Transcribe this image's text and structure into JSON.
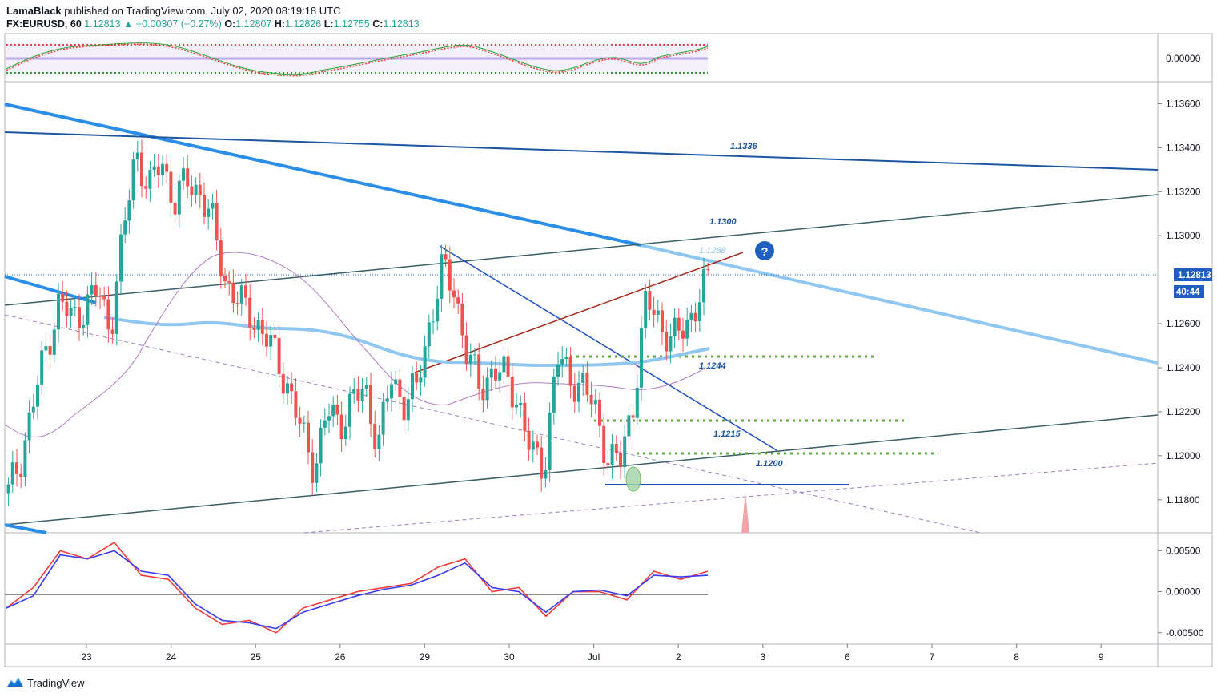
{
  "header": {
    "author": "LamaBlack",
    "published_text": "published on TradingView.com, July 02, 2020 08:19:18 UTC",
    "symbol": "FX:EURUSD, 60",
    "last": "1.12813",
    "change_arrow": "▲",
    "change": "+0.00307 (+0.27%)",
    "o_label": "O:",
    "o_value": "1.12807",
    "h_label": "H:",
    "h_value": "1.12826",
    "l_label": "L:",
    "l_value": "1.12755",
    "c_label": "C:",
    "c_value": "1.12813"
  },
  "branding": {
    "logo_icon": "tradingview-logo-icon",
    "name": "TradingView"
  },
  "chart_data": {
    "type": "candlestick",
    "title": "",
    "xlabel": "",
    "ylabel": "",
    "ylim": [
      1.1165,
      1.137
    ],
    "x_ticks": [
      "23",
      "24",
      "25",
      "26",
      "29",
      "30",
      "Jul",
      "2",
      "3",
      "6",
      "7",
      "8",
      "9"
    ],
    "y_ticks": [
      "1.13600",
      "1.13400",
      "1.13200",
      "1.13000",
      "1.12600",
      "1.12400",
      "1.12200",
      "1.12000",
      "1.11800"
    ],
    "last_price_label": "1.12813",
    "countdown_label": "40:44",
    "level_labels": [
      {
        "text": "1.1336",
        "value": 1.1336
      },
      {
        "text": "1.1300",
        "value": 1.13
      },
      {
        "text": "1.1288",
        "value": 1.1288
      },
      {
        "text": "1.1244",
        "value": 1.1244
      },
      {
        "text": "1.1215",
        "value": 1.1215
      },
      {
        "text": "1.1200",
        "value": 1.12
      }
    ],
    "question_marker": "?",
    "candles_close_path": [
      1.1183,
      1.12,
      1.1225,
      1.125,
      1.127,
      1.1262,
      1.1268,
      1.1275,
      1.1258,
      1.13,
      1.134,
      1.132,
      1.1335,
      1.1315,
      1.1325,
      1.132,
      1.1305,
      1.128,
      1.127,
      1.1265,
      1.1255,
      1.1245,
      1.123,
      1.121,
      1.1195,
      1.122,
      1.1215,
      1.1225,
      1.123,
      1.1205,
      1.1235,
      1.1225,
      1.123,
      1.126,
      1.1285,
      1.1275,
      1.1245,
      1.123,
      1.124,
      1.1235,
      1.1225,
      1.12,
      1.1195,
      1.1245,
      1.1235,
      1.1233,
      1.122,
      1.12,
      1.1197,
      1.1225,
      1.127,
      1.1262,
      1.1252,
      1.1258,
      1.127,
      1.1281
    ],
    "oscillator_top": {
      "ylim": [
        -1,
        1
      ],
      "y_ticks": [
        "0.00000"
      ]
    },
    "oscillator_bottom": {
      "ylim": [
        -0.006,
        0.0065
      ],
      "y_ticks": [
        "0.00500",
        "0.00000",
        "-0.00500"
      ],
      "series": [
        {
          "color": "#ef3b3b",
          "values": [
            -0.002,
            0.0005,
            0.005,
            0.004,
            0.006,
            0.002,
            0.0015,
            -0.002,
            -0.004,
            -0.0035,
            -0.005,
            -0.002,
            -0.001,
            0.0,
            0.0005,
            0.001,
            0.003,
            0.004,
            0.0,
            0.0005,
            -0.003,
            0.0,
            0.0,
            -0.001,
            0.0025,
            0.0015,
            0.0025
          ]
        },
        {
          "color": "#3b3bef",
          "values": [
            -0.002,
            -0.0005,
            0.0045,
            0.004,
            0.005,
            0.0025,
            0.002,
            -0.0015,
            -0.0035,
            -0.0038,
            -0.0045,
            -0.0025,
            -0.0015,
            -0.0005,
            0.0003,
            0.0008,
            0.002,
            0.0035,
            0.0005,
            0.0,
            -0.0025,
            0.0,
            0.0002,
            -0.0005,
            0.002,
            0.0018,
            0.002
          ]
        }
      ]
    },
    "colors": {
      "up": "#26a69a",
      "down": "#ef5350",
      "accent_label": "#2962ff",
      "last_price_bg": "#1e5fbf"
    }
  }
}
